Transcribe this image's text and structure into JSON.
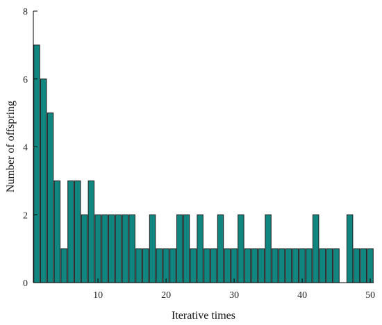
{
  "chart_data": {
    "type": "bar",
    "title": "",
    "xlabel": "Iterative times",
    "ylabel": "Number of offspring",
    "xlim": [
      0.5,
      50.5
    ],
    "ylim": [
      0,
      8
    ],
    "xticks": [
      10,
      20,
      30,
      40,
      50
    ],
    "yticks": [
      0,
      2,
      4,
      6,
      8
    ],
    "grid": false,
    "bar_color": "#118580",
    "x": [
      1,
      2,
      3,
      4,
      5,
      6,
      7,
      8,
      9,
      10,
      11,
      12,
      13,
      14,
      15,
      16,
      17,
      18,
      19,
      20,
      21,
      22,
      23,
      24,
      25,
      26,
      27,
      28,
      29,
      30,
      31,
      32,
      33,
      34,
      35,
      36,
      37,
      38,
      39,
      40,
      41,
      42,
      43,
      44,
      45,
      46,
      47,
      48,
      49,
      50
    ],
    "values": [
      7,
      6,
      5,
      3,
      1,
      3,
      3,
      2,
      3,
      2,
      2,
      2,
      2,
      2,
      2,
      1,
      1,
      2,
      1,
      1,
      1,
      2,
      2,
      1,
      2,
      1,
      1,
      2,
      1,
      1,
      2,
      1,
      1,
      1,
      2,
      1,
      1,
      1,
      1,
      1,
      1,
      2,
      1,
      1,
      1,
      0,
      2,
      1,
      1,
      1
    ]
  }
}
